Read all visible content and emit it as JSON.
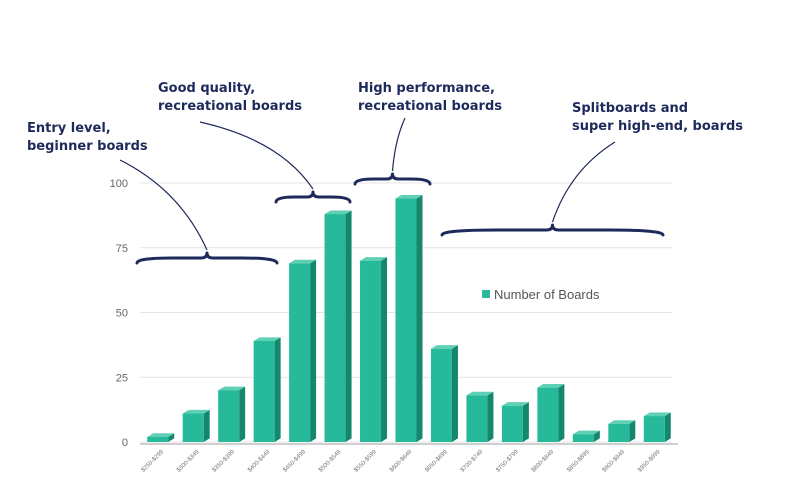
{
  "chart_data": {
    "type": "bar",
    "categories": [
      "$250-$299",
      "$300-$349",
      "$350-$399",
      "$400-$449",
      "$450-$499",
      "$500-$549",
      "$550-$599",
      "$600-$649",
      "$650-$699",
      "$700-$749",
      "$750-$799",
      "$800-$849",
      "$850-$899",
      "$900-$949",
      "$950-$999"
    ],
    "series": [
      {
        "name": "Number of Boards",
        "values": [
          2,
          11,
          20,
          39,
          69,
          88,
          70,
          94,
          36,
          18,
          14,
          21,
          3,
          7,
          10
        ]
      }
    ],
    "title": "",
    "xlabel": "",
    "ylabel": "",
    "ylim": [
      0,
      100
    ],
    "yticks": [
      0,
      25,
      50,
      75,
      100
    ],
    "grid": true,
    "legend_placement": "middle-right",
    "bar_color": "#26b99a",
    "bar_side_color": "#14876d",
    "bar_top_color": "#5fd0b5",
    "annotation_color": "#1f2a5c",
    "annotations": [
      {
        "lines": [
          "Entry level,",
          "beginner boards"
        ],
        "range": [
          "$250-$299",
          "$400-$449"
        ]
      },
      {
        "lines": [
          "Good quality,",
          "recreational boards"
        ],
        "range": [
          "$450-$499",
          "$500-$549"
        ]
      },
      {
        "lines": [
          "High performance,",
          "recreational boards"
        ],
        "range": [
          "$550-$599",
          "$600-$649"
        ]
      },
      {
        "lines": [
          "Splitboards and",
          "super high-end, boards"
        ],
        "range": [
          "$650-$699",
          "$950-$999"
        ]
      }
    ]
  }
}
